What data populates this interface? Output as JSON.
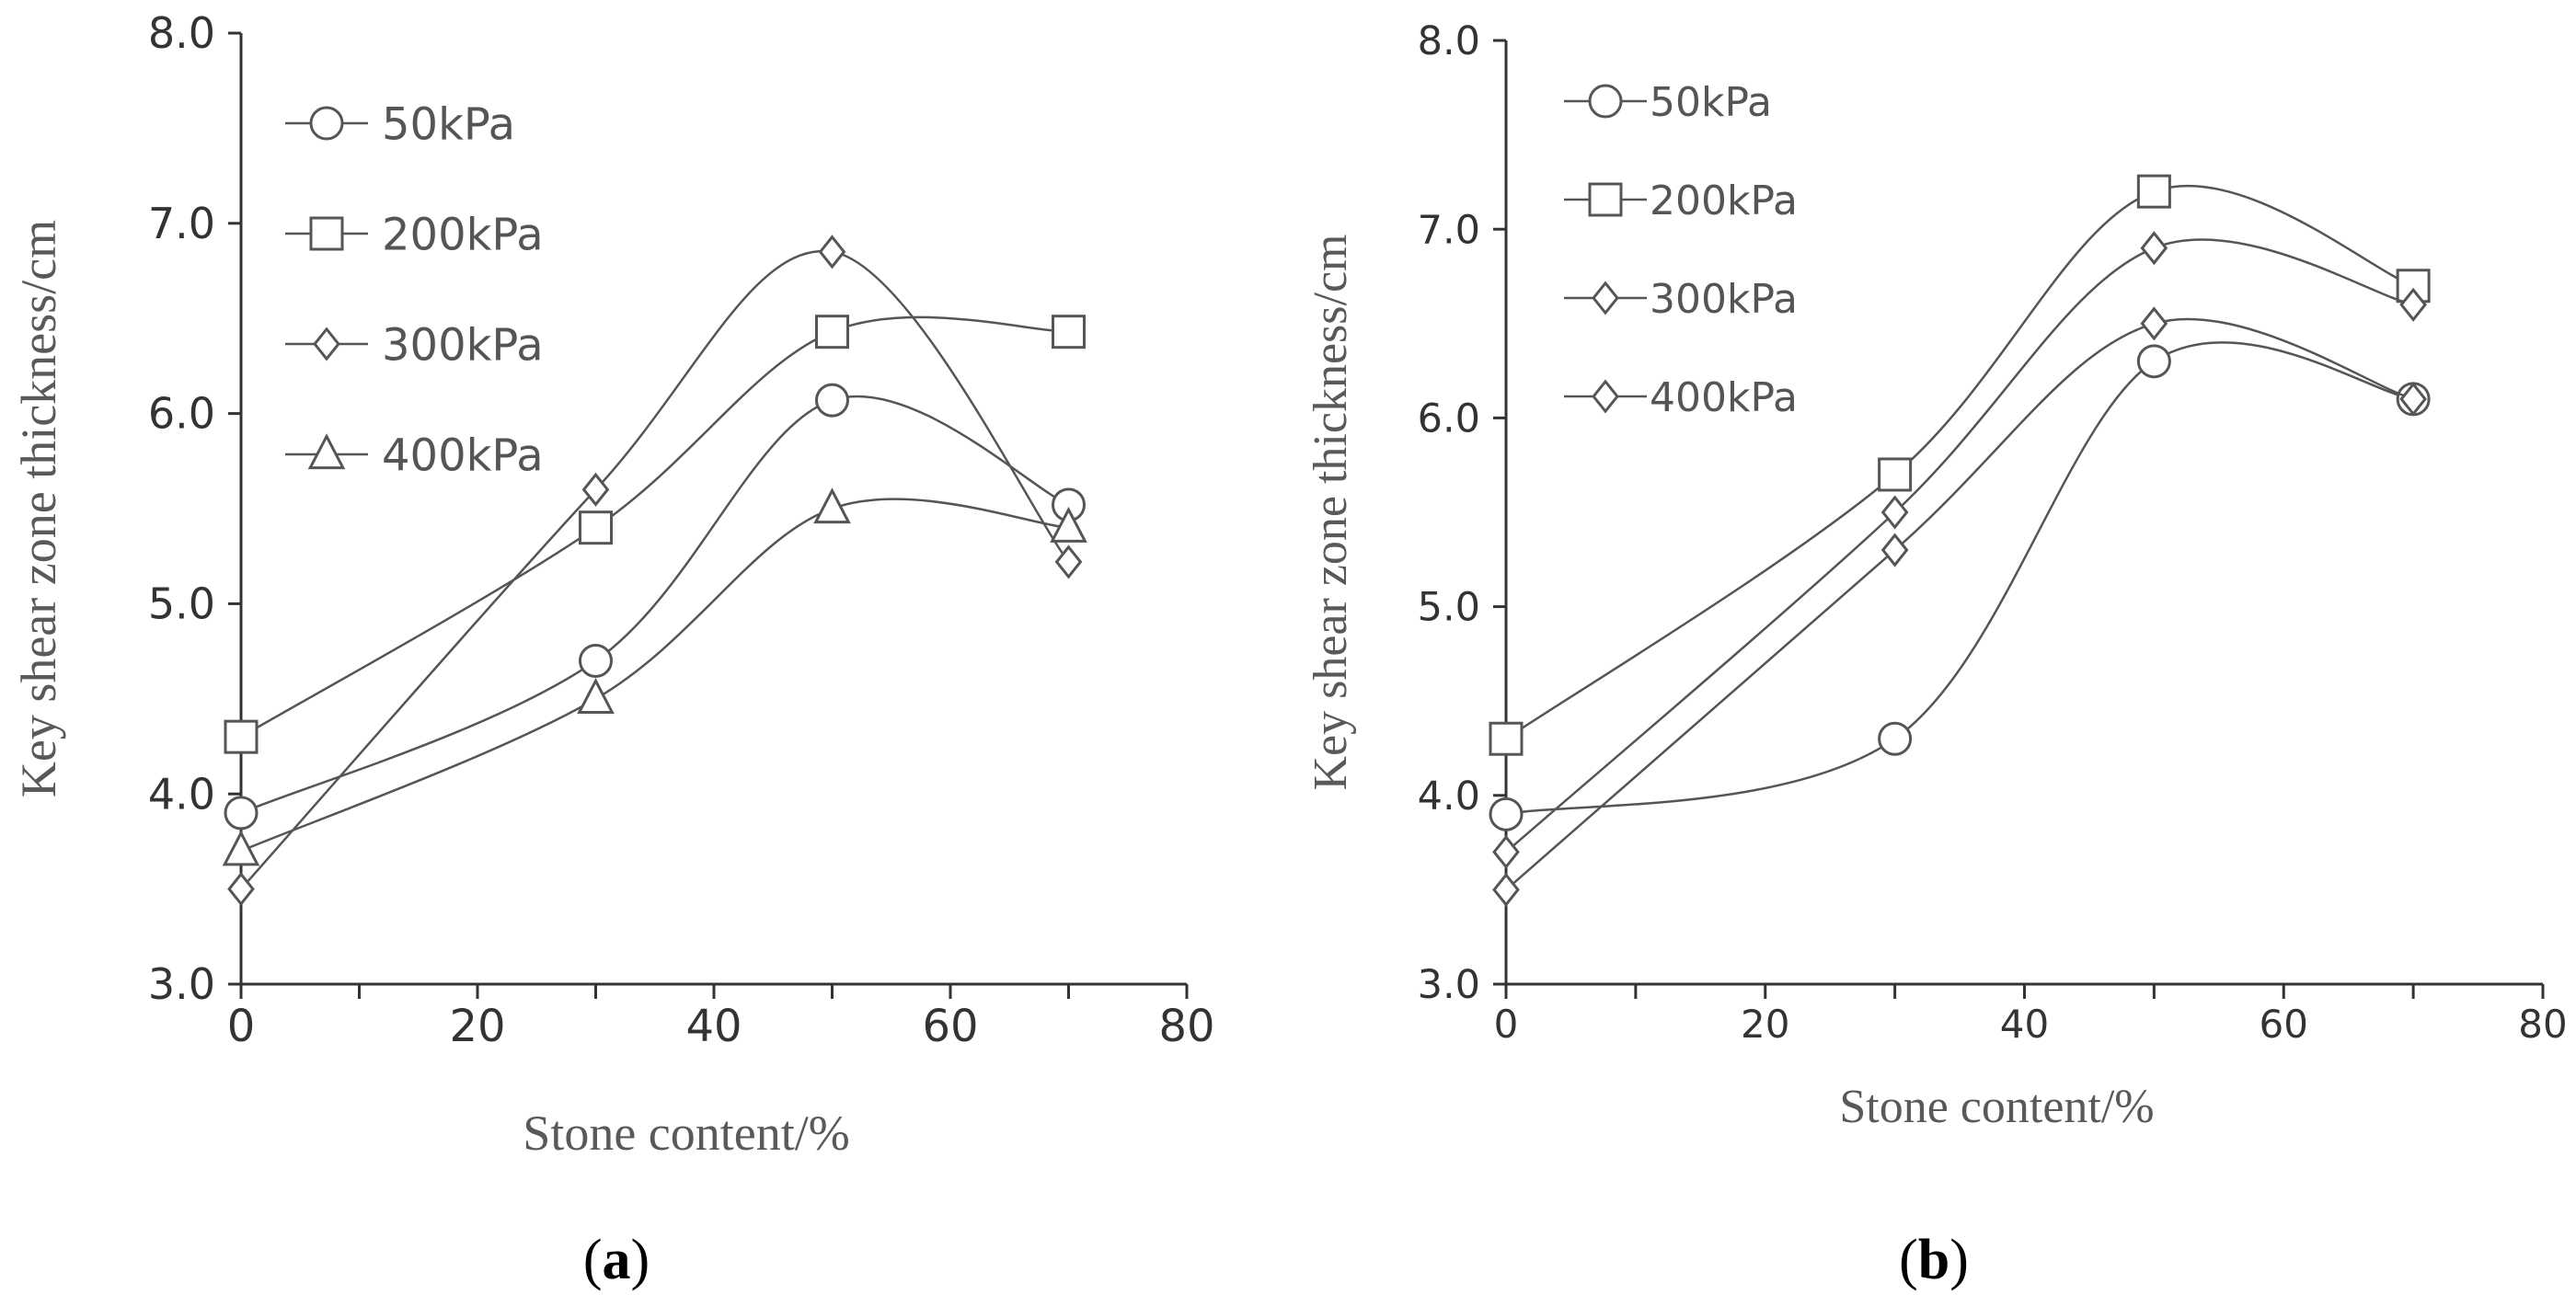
{
  "chart_data": [
    {
      "type": "line",
      "panel_label": "a",
      "title": "",
      "xlabel": "Stone content/%",
      "ylabel": "Key shear zone thickness/cm",
      "xlim": [
        0,
        80
      ],
      "ylim": [
        3.0,
        8.0
      ],
      "x_ticks": [
        "0",
        "20",
        "40",
        "60",
        "80"
      ],
      "y_ticks": [
        "3.0",
        "4.0",
        "5.0",
        "6.0",
        "7.0",
        "8.0"
      ],
      "grid": false,
      "legend_position": "top-left",
      "x": [
        0,
        30,
        50,
        70
      ],
      "series": [
        {
          "name": "50kPa",
          "marker": "circle",
          "values": [
            3.9,
            4.7,
            6.07,
            5.52
          ]
        },
        {
          "name": "200kPa",
          "marker": "square",
          "values": [
            4.3,
            5.4,
            6.43,
            6.43
          ]
        },
        {
          "name": "300kPa",
          "marker": "diamond",
          "values": [
            3.5,
            5.6,
            6.85,
            5.22
          ]
        },
        {
          "name": "400kPa",
          "marker": "triangle",
          "values": [
            3.7,
            4.5,
            5.5,
            5.4
          ]
        }
      ]
    },
    {
      "type": "line",
      "panel_label": "b",
      "title": "",
      "xlabel": "Stone content/%",
      "ylabel": "Key shear zone thickness/cm",
      "xlim": [
        0,
        80
      ],
      "ylim": [
        3.0,
        8.0
      ],
      "x_ticks": [
        "0",
        "20",
        "40",
        "60",
        "80"
      ],
      "y_ticks": [
        "3.0",
        "4.0",
        "5.0",
        "6.0",
        "7.0",
        "8.0"
      ],
      "grid": false,
      "legend_position": "top-left",
      "x": [
        0,
        30,
        50,
        70
      ],
      "series": [
        {
          "name": "50kPa",
          "marker": "circle",
          "values": [
            3.9,
            4.3,
            6.3,
            6.1
          ]
        },
        {
          "name": "200kPa",
          "marker": "square",
          "values": [
            4.3,
            5.7,
            7.2,
            6.7
          ]
        },
        {
          "name": "300kPa",
          "marker": "diamond",
          "values": [
            3.7,
            5.5,
            6.9,
            6.6
          ]
        },
        {
          "name": "400kPa",
          "marker": "diamond",
          "values": [
            3.5,
            5.3,
            6.5,
            6.1
          ]
        }
      ]
    }
  ],
  "colors": {
    "line": "#555555",
    "axis": "#333333",
    "axis_title": "#595959",
    "panel_label": "#000000"
  }
}
